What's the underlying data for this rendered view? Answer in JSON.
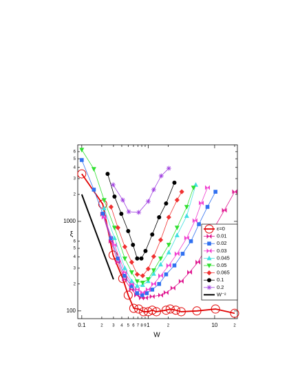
{
  "chart_data": {
    "type": "line",
    "xlabel": "W",
    "ylabel": "ξ",
    "log_x": true,
    "log_y": true,
    "xlim": [
      0.087,
      22
    ],
    "ylim": [
      82,
      7150
    ],
    "xticks": [
      0.1,
      {
        "value": 0.2,
        "label": "2"
      },
      {
        "value": 0.3,
        "label": "3"
      },
      {
        "value": 0.4,
        "label": "4"
      },
      {
        "value": 0.5,
        "label": "5"
      },
      {
        "value": 0.6,
        "label": "6"
      },
      {
        "value": 0.7,
        "label": "7"
      },
      {
        "value": 0.8,
        "label": "8"
      },
      {
        "value": 0.9,
        "label": "9"
      },
      1,
      {
        "value": 2,
        "label": "2"
      },
      10,
      {
        "value": 20,
        "label": "2"
      }
    ],
    "yticks": [
      100,
      {
        "value": 200,
        "label": "2"
      },
      {
        "value": 300,
        "label": "3"
      },
      {
        "value": 400,
        "label": "4"
      },
      {
        "value": 500,
        "label": "5"
      },
      {
        "value": 600,
        "label": "6"
      },
      1000,
      {
        "value": 2000,
        "label": "2"
      },
      {
        "value": 3000,
        "label": "3"
      },
      {
        "value": 4000,
        "label": "4"
      },
      {
        "value": 5000,
        "label": "5"
      },
      {
        "value": 6000,
        "label": "6"
      }
    ],
    "legend": "lower right",
    "series": [
      {
        "name": "ε=0",
        "color": "#e00000",
        "marker": "circle-open",
        "x": [
          0.1,
          0.207,
          0.296,
          0.414,
          0.5,
          0.606,
          0.72,
          0.85,
          1,
          1.15,
          1.33,
          1.86,
          2.14,
          2.6,
          3.14,
          5.4,
          10.3,
          20
        ],
        "values": [
          3390,
          1557,
          420,
          230,
          150,
          107,
          105,
          98,
          98,
          102,
          98,
          102,
          105,
          102,
          98,
          100,
          105,
          94
        ]
      },
      {
        "name": "0.01",
        "color": "#e01890",
        "marker": "bowtie",
        "x": [
          0.207,
          0.276,
          0.35,
          0.44,
          0.56,
          0.67,
          0.79,
          0.91,
          1.15,
          1.54,
          1.86,
          2.36,
          3.14,
          4.2,
          5.6,
          7.4,
          9.9,
          14,
          20
        ],
        "values": [
          1200,
          600,
          350,
          225,
          173,
          150,
          140,
          140,
          145,
          150,
          160,
          180,
          214,
          270,
          350,
          500,
          850,
          1330,
          2140
        ]
      },
      {
        "name": "0.02",
        "color": "#3070f0",
        "marker": "square",
        "x": [
          0.1,
          0.152,
          0.207,
          0.276,
          0.35,
          0.44,
          0.56,
          0.68,
          0.81,
          0.95,
          1.15,
          1.46,
          1.86,
          2.48,
          3.3,
          4.4,
          5.8,
          7.8,
          10.3
        ],
        "values": [
          4840,
          2260,
          1220,
          650,
          385,
          247,
          189,
          158,
          150,
          158,
          173,
          200,
          256,
          322,
          435,
          600,
          930,
          1450,
          2140
        ]
      },
      {
        "name": "0.03",
        "color": "#f040d0",
        "marker": "bowtie",
        "x": [
          0.217,
          0.311,
          0.445,
          0.564,
          0.683,
          0.826,
          1,
          1.21,
          1.54,
          2.04,
          2.72,
          3.8,
          5.06,
          6.3,
          7.8
        ],
        "values": [
          1112,
          547,
          270,
          200,
          173,
          161,
          173,
          200,
          247,
          322,
          435,
          653,
          1018,
          1600,
          2380
        ]
      },
      {
        "name": "0.045",
        "color": "#40e0e0",
        "marker": "triangle-up",
        "x": [
          0.217,
          0.311,
          0.445,
          0.564,
          0.683,
          0.826,
          1,
          1.21,
          1.54,
          2.04,
          2.72,
          3.8,
          5.2
        ],
        "values": [
          1400,
          650,
          300,
          215,
          190,
          195,
          215,
          260,
          330,
          450,
          700,
          1150,
          2560
        ]
      },
      {
        "name": "0.05",
        "color": "#30e030",
        "marker": "triangle-down",
        "x": [
          0.1,
          0.152,
          0.217,
          0.311,
          0.445,
          0.564,
          0.683,
          0.826,
          1,
          1.21,
          1.54,
          2.04,
          2.72,
          3.8,
          4.8
        ],
        "values": [
          6300,
          3840,
          1730,
          850,
          385,
          270,
          214,
          207,
          226,
          284,
          385,
          547,
          850,
          1450,
          2380
        ]
      },
      {
        "name": "0.065",
        "color": "#f03030",
        "marker": "diamond",
        "x": [
          0.276,
          0.35,
          0.445,
          0.564,
          0.683,
          0.826,
          1,
          1.21,
          1.54,
          2.04,
          2.72,
          3.2
        ],
        "values": [
          1450,
          850,
          520,
          350,
          256,
          247,
          295,
          405,
          620,
          1112,
          1730,
          2140
        ]
      },
      {
        "name": "0.1",
        "color": "#000000",
        "marker": "circle",
        "x": [
          0.245,
          0.311,
          0.394,
          0.5,
          0.59,
          0.683,
          0.79,
          0.91,
          1.15,
          1.46,
          1.86,
          2.48
        ],
        "values": [
          3390,
          1890,
          1215,
          780,
          547,
          385,
          385,
          467,
          714,
          1112,
          1585,
          2700
        ]
      },
      {
        "name": "0.2",
        "color": "#a040e0",
        "marker": "asterisk",
        "x": [
          0.296,
          0.414,
          0.51,
          0.72,
          1,
          1.21,
          1.57,
          2.04
        ],
        "values": [
          2560,
          1730,
          1280,
          1260,
          1670,
          2260,
          3220,
          3910
        ]
      },
      {
        "name": "W⁻²",
        "color": "#000000",
        "marker": "none",
        "x": [
          0.1,
          0.3
        ],
        "values": [
          2000,
          225
        ]
      }
    ]
  }
}
